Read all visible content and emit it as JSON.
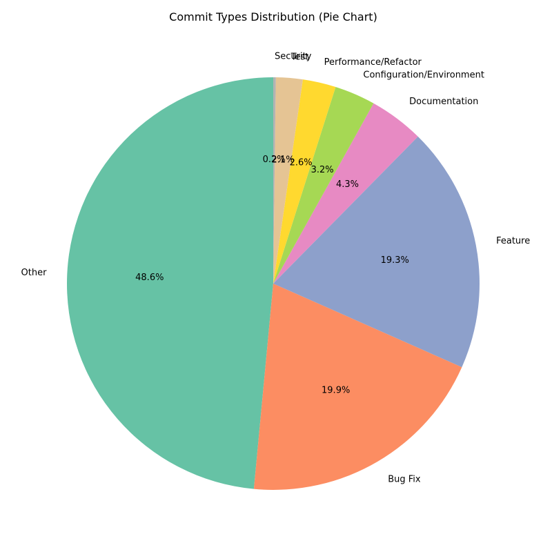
{
  "chart_data": {
    "type": "pie",
    "title": "Commit Types Distribution (Pie Chart)",
    "start_angle_deg": 90,
    "direction": "counterclockwise",
    "slices": [
      {
        "label": "Other",
        "value": 48.6,
        "pct_label": "48.6%",
        "color": "#66c2a5"
      },
      {
        "label": "Bug Fix",
        "value": 19.9,
        "pct_label": "19.9%",
        "color": "#fc8d62"
      },
      {
        "label": "Feature",
        "value": 19.3,
        "pct_label": "19.3%",
        "color": "#8da0cb"
      },
      {
        "label": "Documentation",
        "value": 4.3,
        "pct_label": "4.3%",
        "color": "#e78ac3"
      },
      {
        "label": "Configuration/Environment",
        "value": 3.2,
        "pct_label": "3.2%",
        "color": "#a6d854"
      },
      {
        "label": "Performance/Refactor",
        "value": 2.6,
        "pct_label": "2.6%",
        "color": "#ffd92f"
      },
      {
        "label": "Test",
        "value": 2.1,
        "pct_label": "2.1%",
        "color": "#e5c494"
      },
      {
        "label": "Security",
        "value": 0.2,
        "pct_label": "0.2%",
        "color": "#b3b3b3"
      }
    ]
  }
}
